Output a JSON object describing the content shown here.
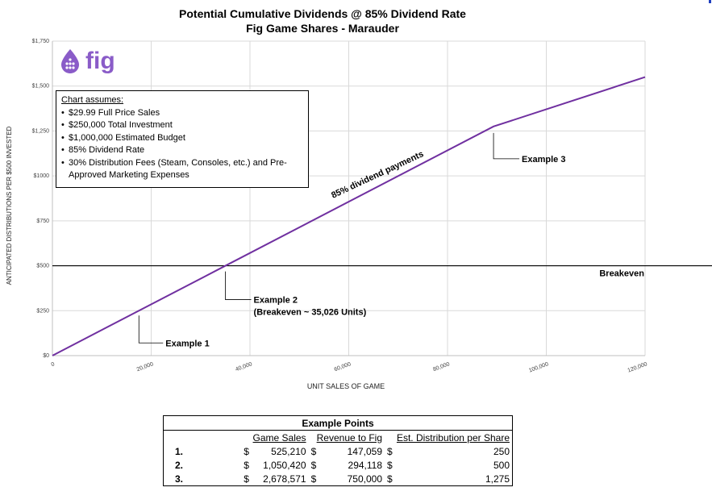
{
  "title_line1": "Potential Cumulative Dividends @ 85% Dividend Rate",
  "title_line2": "Fig Game Shares - Marauder",
  "logo": {
    "icon": "fig-drop-icon",
    "text": "fig",
    "color": "#8a5cc8"
  },
  "assumptions": {
    "heading": "Chart assumes:",
    "items": [
      "$29.99 Full Price Sales",
      "$250,000 Total Investment",
      "$1,000,000 Estimated Budget",
      "85% Dividend Rate",
      "30% Distribution Fees (Steam, Consoles, etc.) and Pre-Approved Marketing Expenses"
    ]
  },
  "chart_data": {
    "type": "line",
    "title": "Potential Cumulative Dividends @ 85% Dividend Rate",
    "subtitle": "Fig Game Shares - Marauder",
    "xlabel": "UNIT SALES OF GAME",
    "ylabel": "ANTICIPATED DISTRIBUTIONS PER $500 INVESTED",
    "xlim": [
      0,
      120000
    ],
    "ylim": [
      0,
      1750
    ],
    "x_ticks": [
      0,
      20000,
      40000,
      60000,
      80000,
      100000,
      120000
    ],
    "x_tick_labels": [
      "0",
      "20,000",
      "40,000",
      "60,000",
      "80,000",
      "100,000",
      "120,000"
    ],
    "y_ticks": [
      0,
      250,
      500,
      750,
      1000,
      1250,
      1500,
      1750
    ],
    "y_tick_labels": [
      "$0",
      "$250",
      "$500",
      "$750",
      "$1000",
      "$1,250",
      "$1,500",
      "$1,750"
    ],
    "grid": true,
    "series": [
      {
        "name": "85% dividend payments",
        "color": "#7030a0",
        "x": [
          0,
          35026,
          89316,
          120000
        ],
        "y": [
          0,
          500,
          1275,
          1550
        ]
      }
    ],
    "breakeven": {
      "y": 500,
      "label": "Breakeven"
    },
    "annotations": [
      {
        "label": "Example 1",
        "x": 17514,
        "y": 250
      },
      {
        "label": "Example 2",
        "label2": "(Breakeven ~ 35,026 Units)",
        "x": 35026,
        "y": 500
      },
      {
        "label": "Example 3",
        "x": 89316,
        "y": 1275
      }
    ],
    "series_label": "85% dividend payments"
  },
  "table": {
    "title": "Example Points",
    "headers": [
      "Game Sales",
      "Revenue to Fig",
      "Est. Distribution per Share"
    ],
    "rows": [
      {
        "index": "1.",
        "cur1": "$",
        "sales": "525,210",
        "cur2": "$",
        "revenue": "147,059",
        "cur3": "$",
        "dist": "250"
      },
      {
        "index": "2.",
        "cur1": "$",
        "sales": "1,050,420",
        "cur2": "$",
        "revenue": "294,118",
        "cur3": "$",
        "dist": "500"
      },
      {
        "index": "3.",
        "cur1": "$",
        "sales": "2,678,571",
        "cur2": "$",
        "revenue": "750,000",
        "cur3": "$",
        "dist": "1,275"
      }
    ]
  }
}
